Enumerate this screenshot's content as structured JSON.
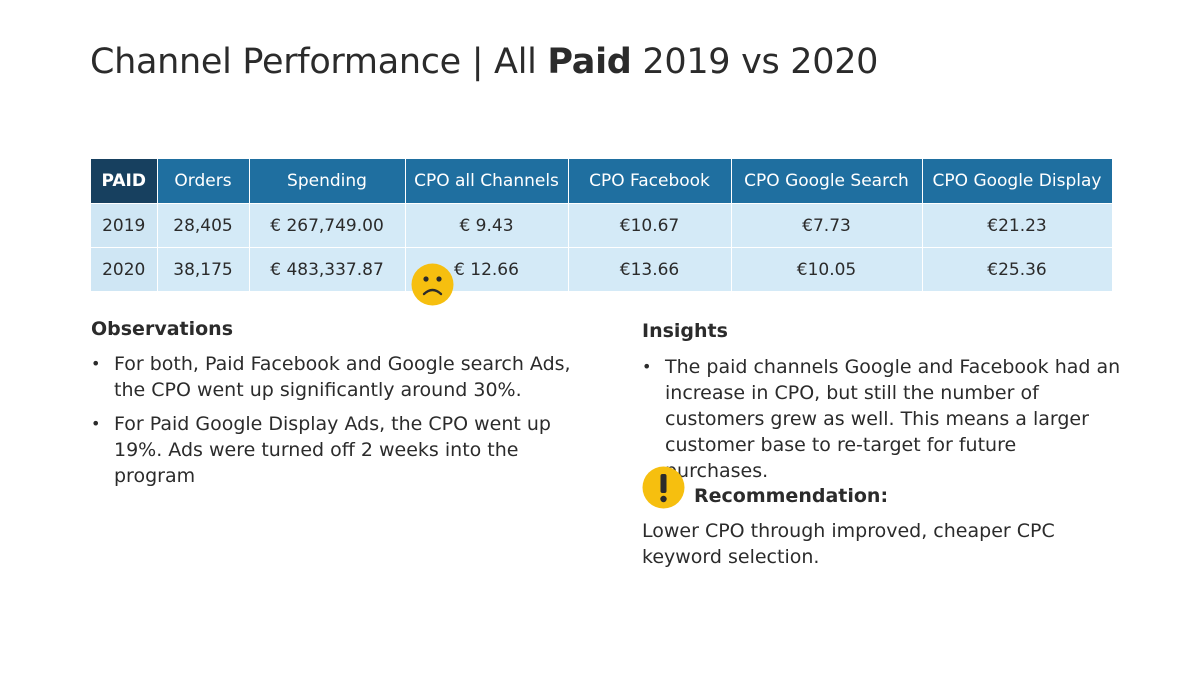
{
  "title": {
    "prefix": "Channel Performance | All ",
    "bold": "Paid",
    "suffix": " 2019 vs 2020"
  },
  "table": {
    "headers": [
      "PAID",
      "Orders",
      "Spending",
      "CPO all Channels",
      "CPO Facebook",
      "CPO Google Search",
      "CPO Google Display"
    ],
    "rows": [
      [
        "2019",
        "28,405",
        "€ 267,749.00",
        "€ 9.43",
        "€10.67",
        "€7.73",
        "€21.23"
      ],
      [
        "2020",
        "38,175",
        "€ 483,337.87",
        "€ 12.66",
        "€13.66",
        "€10.05",
        "€25.36"
      ]
    ]
  },
  "icons": {
    "frown": "frowning-face-icon",
    "exclamation": "exclamation-icon",
    "accent_color": "#f6bf0f",
    "header_color": "#1f6fa0",
    "corner_color": "#17405f",
    "row_color": "#d4eaf7"
  },
  "observations": {
    "heading": "Observations",
    "items": [
      "For both, Paid Facebook and Google search Ads, the CPO went up significantly around 30%.",
      "For Paid Google Display Ads, the CPO went up 19%. Ads were turned off 2 weeks into the program"
    ]
  },
  "insights": {
    "heading": "Insights",
    "items": [
      "The paid channels Google and Facebook had an increase in CPO, but still the number of customers grew as well. This means a larger customer base to re-target for future purchases."
    ]
  },
  "recommendation": {
    "label": "Recommendation:",
    "text": "Lower CPO through improved, cheaper CPC keyword selection."
  }
}
